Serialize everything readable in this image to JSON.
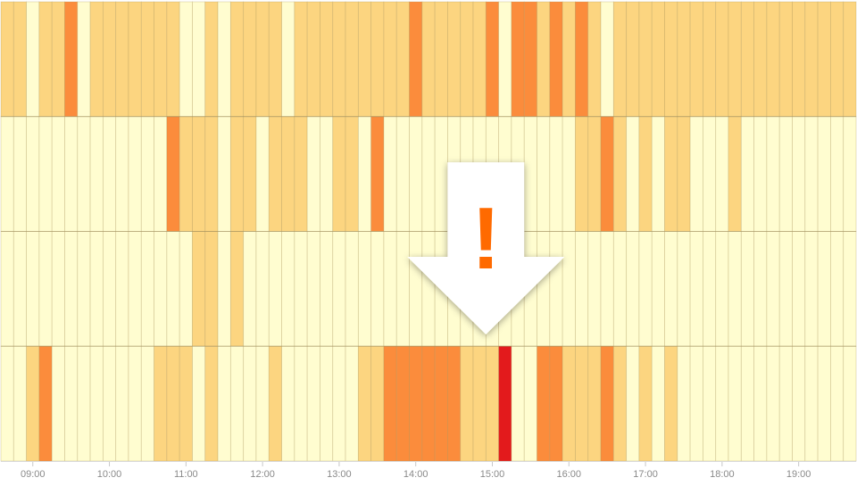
{
  "chart_data": {
    "type": "heatmap",
    "title": "",
    "xlabel": "",
    "ylabel": "",
    "grid": true,
    "legend": "none",
    "x_tick_labels": [
      "09:00",
      "10:00",
      "11:00",
      "12:00",
      "13:00",
      "14:00",
      "15:00",
      "16:00",
      "17:00",
      "18:00",
      "19:00"
    ],
    "x_start": "08:35",
    "bin_minutes": 10,
    "rows": 4,
    "levels": [
      {
        "level": 0,
        "color": "#FFFDD0"
      },
      {
        "level": 1,
        "color": "#FDE49E"
      },
      {
        "level": 2,
        "color": "#FCD580"
      },
      {
        "level": 3,
        "color": "#FB8C3C"
      },
      {
        "level": 4,
        "color": "#E31A1C"
      }
    ],
    "cells": [
      [
        2,
        2,
        0,
        2,
        2,
        3,
        0,
        2,
        2,
        2,
        2,
        2,
        2,
        2,
        0,
        0,
        2,
        0,
        2,
        2,
        2,
        2,
        0,
        2,
        2,
        2,
        2,
        2,
        2,
        2,
        2,
        2,
        3,
        2,
        2,
        2,
        2,
        2,
        3,
        0,
        3,
        3,
        2,
        3,
        2,
        3,
        2,
        0,
        2,
        2,
        2,
        2,
        2,
        2,
        2,
        2,
        2,
        2,
        2,
        2,
        2,
        2,
        2,
        2,
        2,
        2,
        2
      ],
      [
        0,
        0,
        0,
        0,
        0,
        0,
        0,
        0,
        0,
        0,
        0,
        0,
        0,
        3,
        2,
        2,
        2,
        0,
        2,
        2,
        0,
        2,
        2,
        2,
        0,
        0,
        2,
        2,
        0,
        3,
        0,
        0,
        0,
        0,
        0,
        0,
        0,
        0,
        0,
        0,
        0,
        0,
        0,
        0,
        0,
        2,
        2,
        3,
        2,
        0,
        2,
        0,
        2,
        2,
        0,
        0,
        0,
        2,
        0,
        0,
        0,
        0,
        0,
        0,
        0,
        0,
        0
      ],
      [
        0,
        0,
        0,
        0,
        0,
        0,
        0,
        0,
        0,
        0,
        0,
        0,
        0,
        0,
        0,
        2,
        2,
        0,
        2,
        0,
        0,
        0,
        0,
        0,
        0,
        0,
        0,
        0,
        0,
        0,
        0,
        0,
        0,
        0,
        0,
        0,
        0,
        0,
        0,
        0,
        0,
        0,
        0,
        0,
        0,
        0,
        0,
        0,
        0,
        0,
        0,
        0,
        0,
        0,
        0,
        0,
        0,
        0,
        0,
        0,
        0,
        0,
        0,
        0,
        0,
        0,
        0
      ],
      [
        0,
        0,
        2,
        3,
        0,
        0,
        0,
        0,
        0,
        0,
        0,
        0,
        2,
        2,
        2,
        0,
        2,
        0,
        0,
        0,
        0,
        2,
        0,
        0,
        0,
        0,
        0,
        0,
        2,
        2,
        3,
        3,
        3,
        3,
        3,
        3,
        2,
        2,
        2,
        4,
        0,
        0,
        3,
        3,
        2,
        2,
        2,
        3,
        2,
        0,
        2,
        0,
        2,
        0,
        0,
        0,
        0,
        0,
        0,
        0,
        0,
        0,
        0,
        0,
        0,
        0,
        0
      ]
    ],
    "annotation": {
      "type": "warning-arrow",
      "symbol": "!",
      "points_to_time": "14:50"
    }
  }
}
